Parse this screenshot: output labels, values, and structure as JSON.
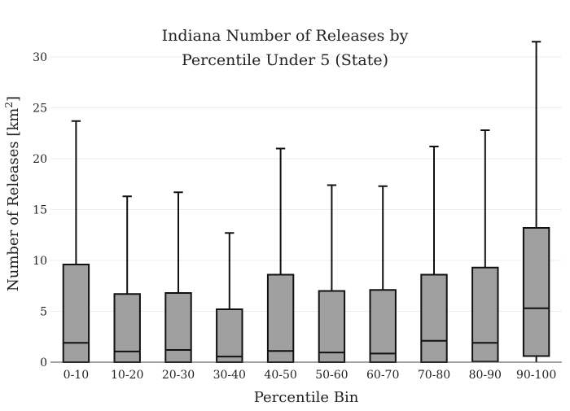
{
  "chart_data": {
    "type": "box",
    "title_lines": [
      "Indiana Number of Releases by",
      "Percentile Under 5 (State)"
    ],
    "xlabel": "Percentile Bin",
    "ylabel_main": "Number of Releases  [km",
    "ylabel_sup": "2",
    "ylabel_close": "]",
    "ylim": [
      0,
      32
    ],
    "yticks": [
      0,
      5,
      10,
      15,
      20,
      25,
      30
    ],
    "grid": true,
    "legend": "none",
    "box_color": "#a0a0a0",
    "line_color": "#111111",
    "categories": [
      "0-10",
      "10-20",
      "20-30",
      "30-40",
      "40-50",
      "50-60",
      "60-70",
      "70-80",
      "80-90",
      "90-100"
    ],
    "boxes": [
      {
        "min": 0,
        "q1": 0,
        "median": 1.9,
        "q3": 9.6,
        "max": 23.7
      },
      {
        "min": 0,
        "q1": 0,
        "median": 1.05,
        "q3": 6.7,
        "max": 16.3
      },
      {
        "min": 0,
        "q1": 0,
        "median": 1.2,
        "q3": 6.8,
        "max": 16.7
      },
      {
        "min": 0,
        "q1": 0,
        "median": 0.55,
        "q3": 5.2,
        "max": 12.7
      },
      {
        "min": 0,
        "q1": 0,
        "median": 1.1,
        "q3": 8.6,
        "max": 21.0
      },
      {
        "min": 0,
        "q1": 0,
        "median": 0.95,
        "q3": 7.0,
        "max": 17.4
      },
      {
        "min": 0,
        "q1": 0,
        "median": 0.85,
        "q3": 7.1,
        "max": 17.3
      },
      {
        "min": 0,
        "q1": 0,
        "median": 2.1,
        "q3": 8.6,
        "max": 21.2
      },
      {
        "min": 0,
        "q1": 0.05,
        "median": 1.9,
        "q3": 9.3,
        "max": 22.8
      },
      {
        "min": 0,
        "q1": 0.6,
        "median": 5.3,
        "q3": 13.2,
        "max": 31.5
      }
    ]
  }
}
